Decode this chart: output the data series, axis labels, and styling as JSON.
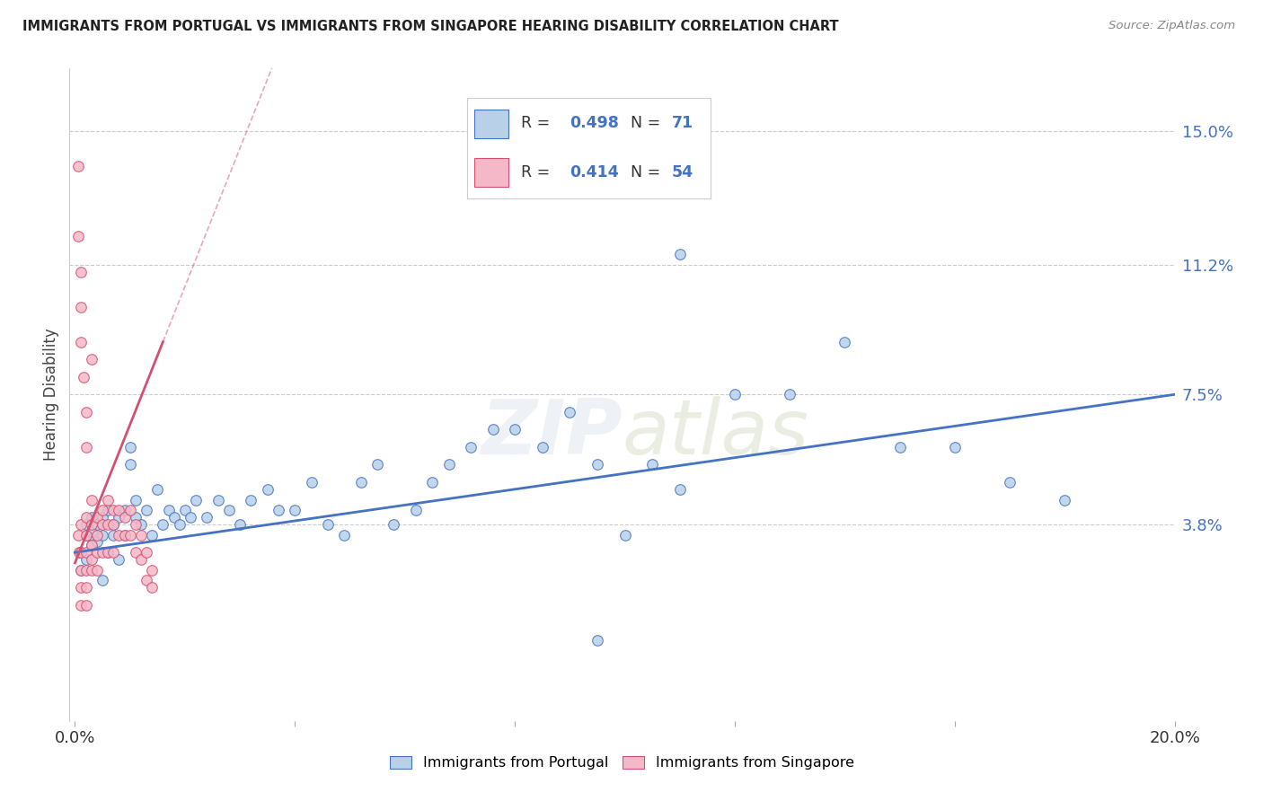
{
  "title": "IMMIGRANTS FROM PORTUGAL VS IMMIGRANTS FROM SINGAPORE HEARING DISABILITY CORRELATION CHART",
  "source": "Source: ZipAtlas.com",
  "ylabel": "Hearing Disability",
  "xlim": [
    0.0,
    0.2
  ],
  "ylim": [
    -0.018,
    0.168
  ],
  "ytick_positions": [
    0.038,
    0.075,
    0.112,
    0.15
  ],
  "ytick_labels": [
    "3.8%",
    "7.5%",
    "11.2%",
    "15.0%"
  ],
  "r_portugal": 0.498,
  "n_portugal": 71,
  "r_singapore": 0.414,
  "n_singapore": 54,
  "color_portugal_fill": "#b8d0e8",
  "color_portugal_edge": "#4472C4",
  "color_singapore_fill": "#f4b8c8",
  "color_singapore_edge": "#d45070",
  "color_portugal_line": "#4472C4",
  "color_singapore_line": "#d45070",
  "background": "#ffffff",
  "grid_color": "#cccccc",
  "portugal_x": [
    0.001,
    0.001,
    0.002,
    0.002,
    0.002,
    0.003,
    0.003,
    0.003,
    0.004,
    0.004,
    0.005,
    0.005,
    0.005,
    0.006,
    0.006,
    0.007,
    0.007,
    0.008,
    0.008,
    0.009,
    0.009,
    0.01,
    0.01,
    0.011,
    0.011,
    0.012,
    0.013,
    0.014,
    0.015,
    0.016,
    0.017,
    0.018,
    0.019,
    0.02,
    0.021,
    0.022,
    0.024,
    0.026,
    0.028,
    0.03,
    0.032,
    0.035,
    0.037,
    0.04,
    0.043,
    0.046,
    0.049,
    0.052,
    0.055,
    0.058,
    0.062,
    0.065,
    0.068,
    0.072,
    0.076,
    0.08,
    0.085,
    0.09,
    0.095,
    0.1,
    0.105,
    0.11,
    0.12,
    0.13,
    0.14,
    0.15,
    0.16,
    0.17,
    0.18,
    0.095,
    0.11
  ],
  "portugal_y": [
    0.03,
    0.025,
    0.035,
    0.028,
    0.038,
    0.032,
    0.036,
    0.04,
    0.033,
    0.038,
    0.022,
    0.04,
    0.035,
    0.03,
    0.042,
    0.035,
    0.038,
    0.028,
    0.04,
    0.035,
    0.042,
    0.055,
    0.06,
    0.04,
    0.045,
    0.038,
    0.042,
    0.035,
    0.048,
    0.038,
    0.042,
    0.04,
    0.038,
    0.042,
    0.04,
    0.045,
    0.04,
    0.045,
    0.042,
    0.038,
    0.045,
    0.048,
    0.042,
    0.042,
    0.05,
    0.038,
    0.035,
    0.05,
    0.055,
    0.038,
    0.042,
    0.05,
    0.055,
    0.06,
    0.065,
    0.065,
    0.06,
    0.07,
    0.055,
    0.035,
    0.055,
    0.048,
    0.075,
    0.075,
    0.09,
    0.06,
    0.06,
    0.05,
    0.045,
    0.005,
    0.115
  ],
  "singapore_x": [
    0.0005,
    0.0008,
    0.001,
    0.001,
    0.001,
    0.001,
    0.001,
    0.002,
    0.002,
    0.002,
    0.002,
    0.002,
    0.002,
    0.003,
    0.003,
    0.003,
    0.003,
    0.003,
    0.004,
    0.004,
    0.004,
    0.004,
    0.005,
    0.005,
    0.005,
    0.006,
    0.006,
    0.006,
    0.007,
    0.007,
    0.007,
    0.008,
    0.008,
    0.009,
    0.009,
    0.01,
    0.01,
    0.011,
    0.011,
    0.012,
    0.012,
    0.013,
    0.013,
    0.014,
    0.014,
    0.0005,
    0.001,
    0.001,
    0.0015,
    0.002,
    0.002,
    0.003,
    0.0005,
    0.001
  ],
  "singapore_y": [
    0.035,
    0.03,
    0.038,
    0.03,
    0.025,
    0.02,
    0.015,
    0.035,
    0.03,
    0.025,
    0.02,
    0.015,
    0.04,
    0.038,
    0.032,
    0.028,
    0.045,
    0.025,
    0.04,
    0.035,
    0.03,
    0.025,
    0.042,
    0.038,
    0.03,
    0.045,
    0.038,
    0.03,
    0.042,
    0.038,
    0.03,
    0.042,
    0.035,
    0.04,
    0.035,
    0.042,
    0.035,
    0.038,
    0.03,
    0.035,
    0.028,
    0.03,
    0.022,
    0.025,
    0.02,
    0.12,
    0.11,
    0.09,
    0.08,
    0.07,
    0.06,
    0.085,
    0.14,
    0.1
  ],
  "sing_line_x": [
    0.0,
    0.016
  ],
  "sing_line_y": [
    0.027,
    0.09
  ],
  "port_line_x": [
    0.0,
    0.2
  ],
  "port_line_y": [
    0.03,
    0.075
  ]
}
